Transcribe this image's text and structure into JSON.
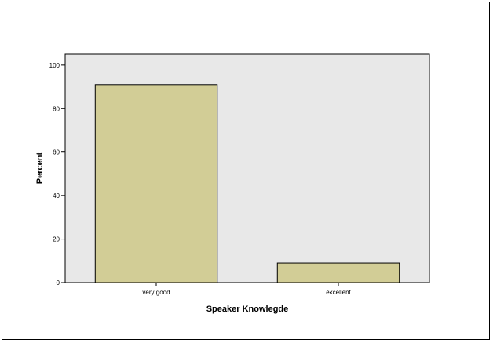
{
  "chart_data": {
    "type": "bar",
    "categories": [
      "very good",
      "excellent"
    ],
    "values": [
      91,
      9
    ],
    "xlabel": "Speaker Knowlegde",
    "ylabel": "Percent",
    "ylim": [
      0,
      105
    ],
    "yticks": [
      0,
      20,
      40,
      60,
      80,
      100
    ],
    "grid": false,
    "colors": {
      "plot_background": "#e8e8e8",
      "bar_fill": "#d2cd96",
      "bar_stroke": "#000000"
    }
  }
}
